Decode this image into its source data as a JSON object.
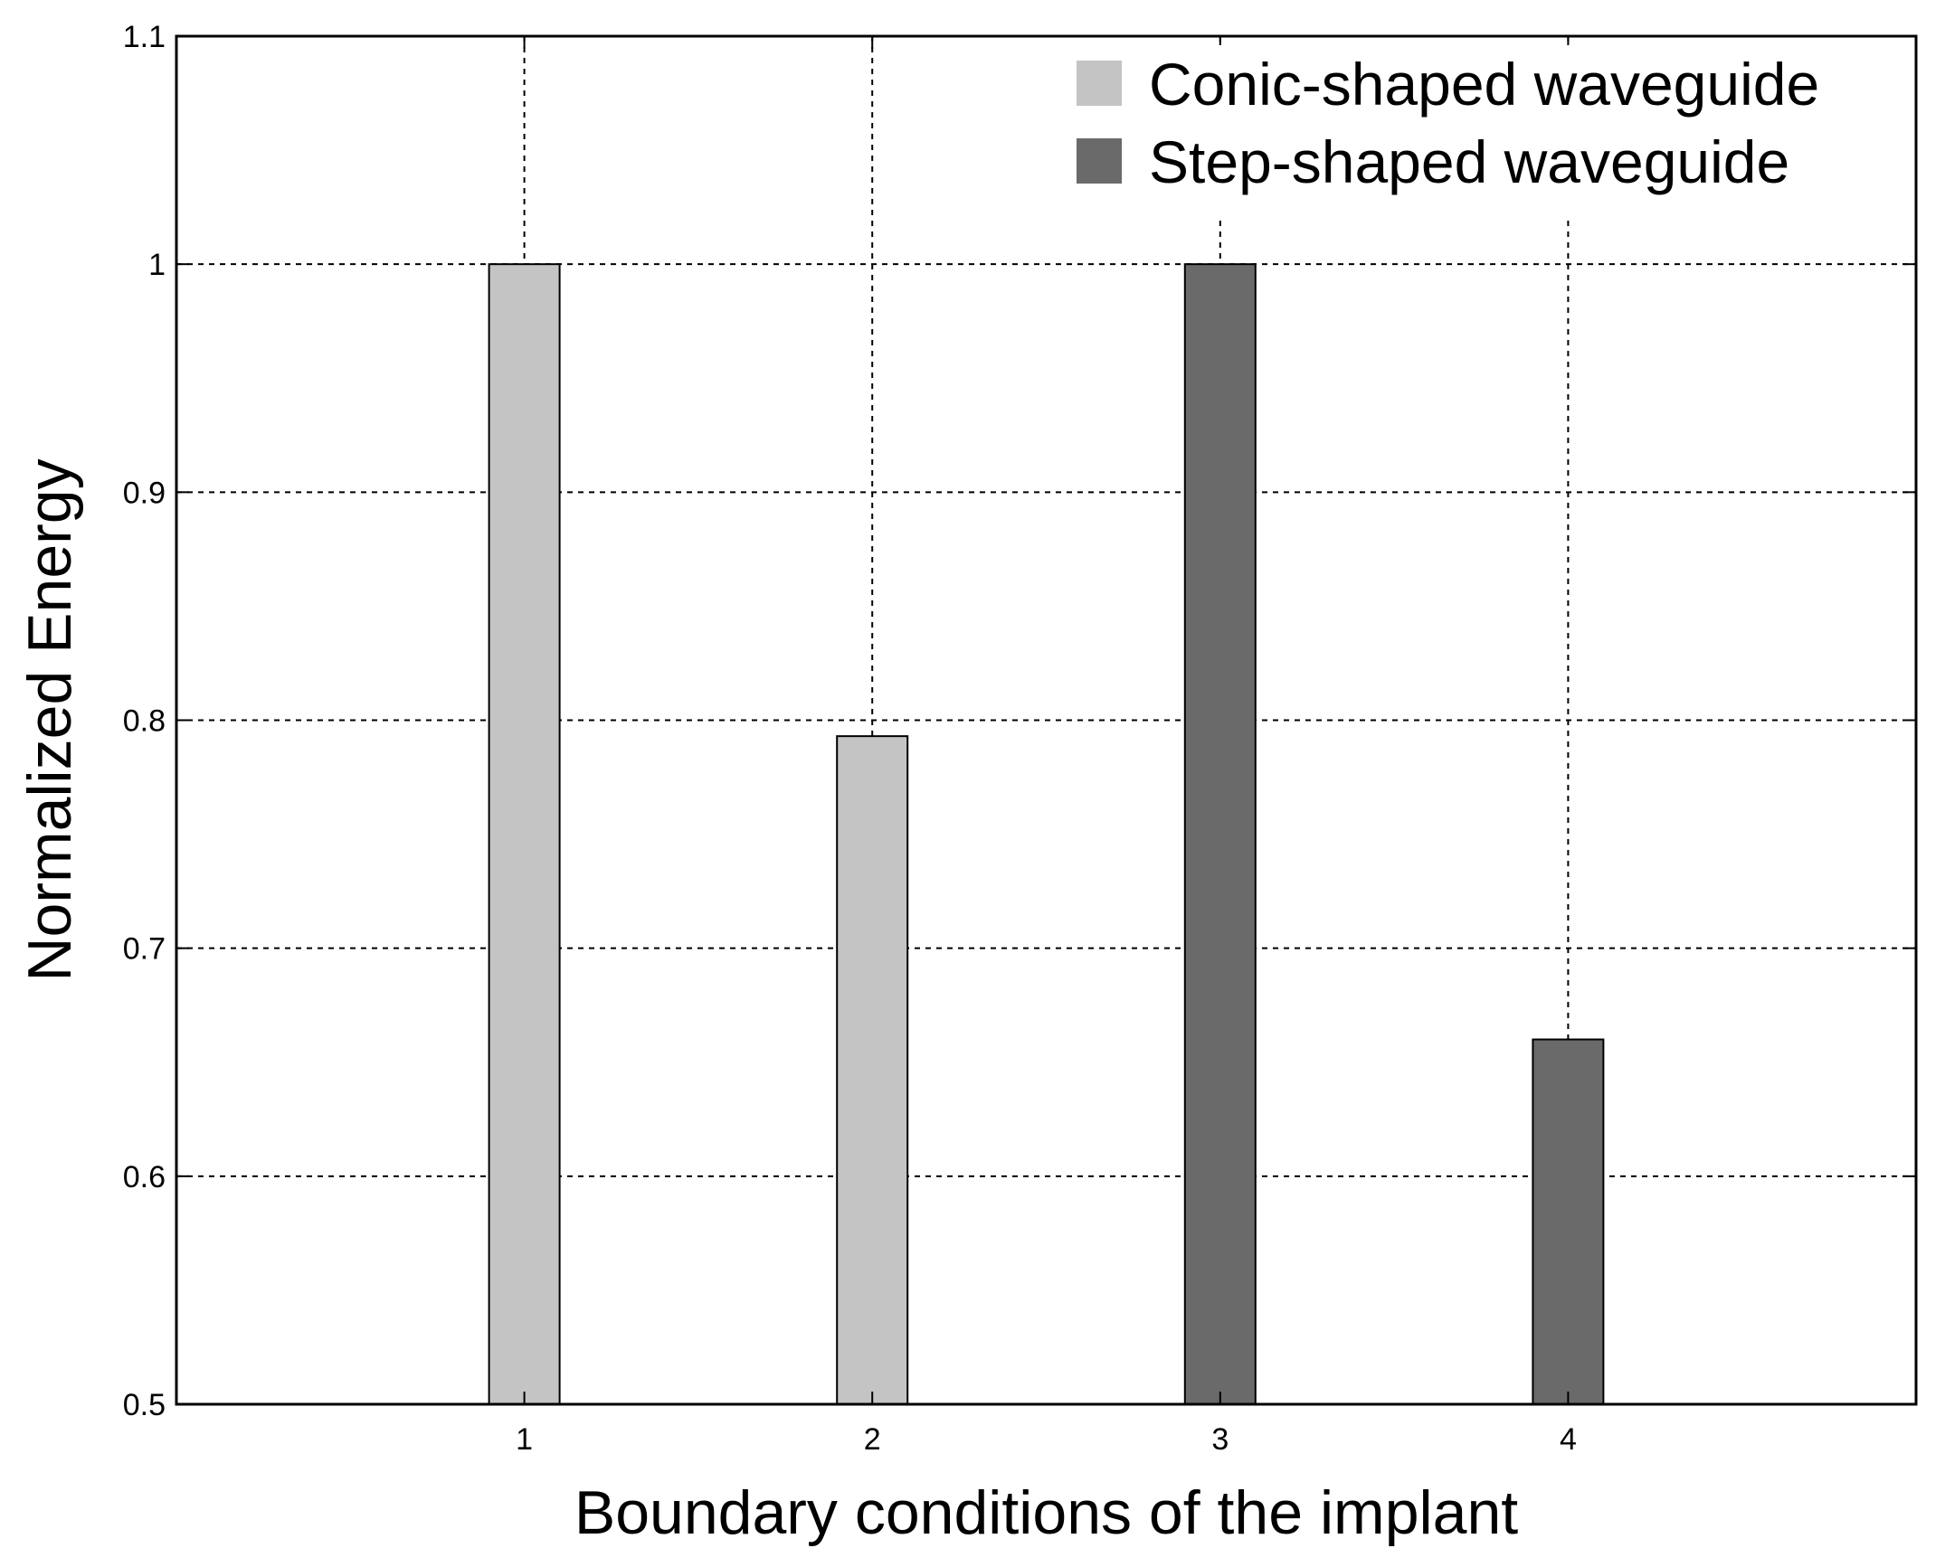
{
  "chart_data": {
    "type": "bar",
    "xlabel": "Boundary conditions of the implant",
    "ylabel": "Normalized Energy",
    "categories": [
      "1",
      "2",
      "3",
      "4"
    ],
    "x": [
      1,
      2,
      3,
      4
    ],
    "xlim": [
      0,
      5
    ],
    "ylim": [
      0.5,
      1.1
    ],
    "yticks": [
      0.5,
      0.6,
      0.7,
      0.8,
      0.9,
      1,
      1.1
    ],
    "ytick_labels": [
      "0.5",
      "0.6",
      "0.7",
      "0.8",
      "0.9",
      "1",
      "1.1"
    ],
    "grid": true,
    "legend_position": "top-right",
    "series": [
      {
        "name": "Conic-shaped waveguide",
        "color": "#c4c4c4",
        "values": [
          1.0,
          0.793,
          null,
          null
        ]
      },
      {
        "name": "Step-shaped waveguide",
        "color": "#6a6a6a",
        "values": [
          null,
          null,
          1.0,
          0.66
        ]
      }
    ]
  }
}
